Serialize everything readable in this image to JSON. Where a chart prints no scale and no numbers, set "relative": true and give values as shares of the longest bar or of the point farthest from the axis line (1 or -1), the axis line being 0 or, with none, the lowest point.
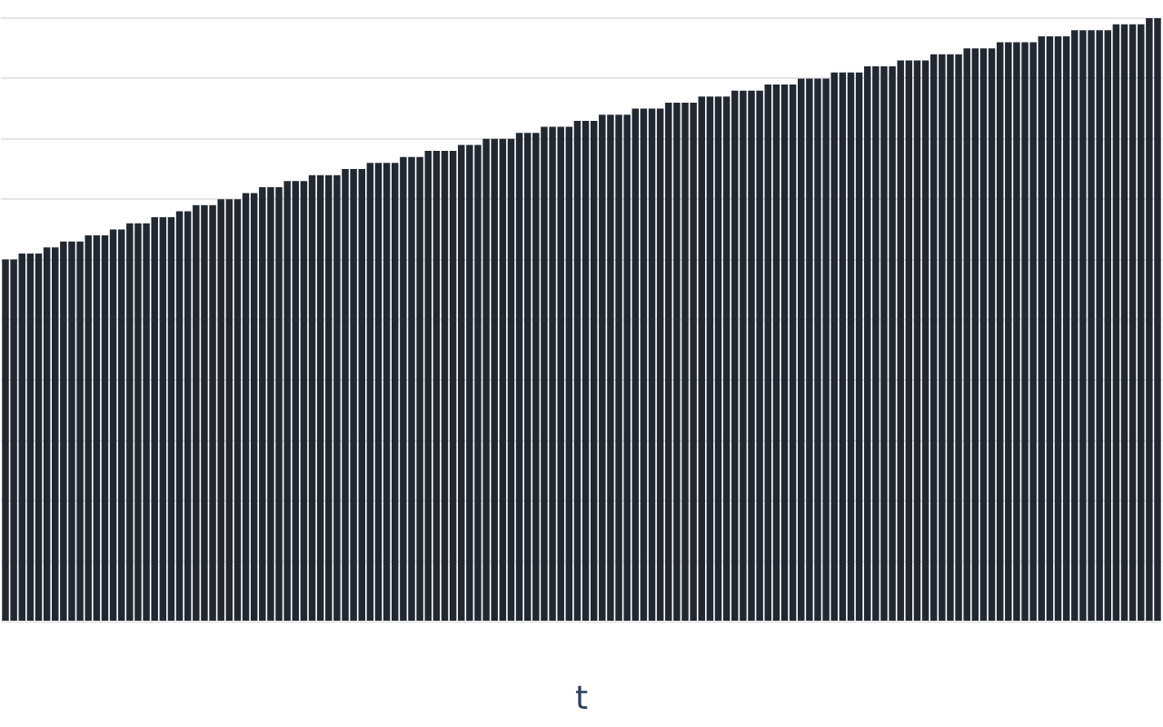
{
  "chart_data": {
    "type": "bar",
    "xlabel": "t",
    "relative": true,
    "grid": "y",
    "color": "#222831",
    "categories": [
      null,
      null,
      null,
      null,
      null,
      null,
      null,
      null,
      null,
      null,
      null,
      null,
      null,
      null,
      null,
      null,
      null,
      null,
      null,
      null,
      null,
      null,
      null,
      null,
      null,
      null,
      null,
      null,
      null,
      null,
      null,
      null,
      null,
      null,
      null,
      null,
      null,
      null,
      null,
      null,
      null,
      null,
      null,
      null,
      null,
      null,
      null,
      null,
      null,
      null,
      null,
      null,
      null,
      null,
      null,
      null,
      null,
      null,
      null,
      null,
      null,
      null,
      null,
      null,
      null,
      null,
      null,
      null,
      null,
      null,
      null,
      null,
      null,
      null,
      null,
      null,
      null,
      null,
      null,
      null,
      null,
      null,
      null,
      null,
      null,
      null,
      null,
      null,
      null,
      null,
      null,
      null,
      null,
      null,
      null,
      null,
      null,
      null,
      null,
      null,
      null,
      null,
      null,
      null,
      null,
      null,
      null,
      null,
      null,
      null,
      null,
      null,
      null,
      null,
      null,
      null,
      null,
      null,
      null,
      null,
      null,
      null,
      null,
      null,
      null,
      null,
      null,
      null,
      null,
      null,
      null,
      null,
      null,
      null,
      null,
      null,
      null,
      null,
      null,
      null
    ],
    "values": [
      0.6,
      0.6,
      0.61,
      0.61,
      0.61,
      0.62,
      0.62,
      0.63,
      0.63,
      0.63,
      0.64,
      0.64,
      0.64,
      0.65,
      0.65,
      0.66,
      0.66,
      0.66,
      0.67,
      0.67,
      0.67,
      0.68,
      0.68,
      0.69,
      0.69,
      0.69,
      0.7,
      0.7,
      0.7,
      0.71,
      0.71,
      0.72,
      0.72,
      0.72,
      0.73,
      0.73,
      0.73,
      0.74,
      0.74,
      0.74,
      0.74,
      0.75,
      0.75,
      0.75,
      0.76,
      0.76,
      0.76,
      0.76,
      0.77,
      0.77,
      0.77,
      0.78,
      0.78,
      0.78,
      0.78,
      0.79,
      0.79,
      0.79,
      0.8,
      0.8,
      0.8,
      0.8,
      0.81,
      0.81,
      0.81,
      0.82,
      0.82,
      0.82,
      0.82,
      0.83,
      0.83,
      0.83,
      0.84,
      0.84,
      0.84,
      0.84,
      0.85,
      0.85,
      0.85,
      0.85,
      0.86,
      0.86,
      0.86,
      0.86,
      0.87,
      0.87,
      0.87,
      0.87,
      0.88,
      0.88,
      0.88,
      0.88,
      0.89,
      0.89,
      0.89,
      0.89,
      0.9,
      0.9,
      0.9,
      0.9,
      0.91,
      0.91,
      0.91,
      0.91,
      0.92,
      0.92,
      0.92,
      0.92,
      0.93,
      0.93,
      0.93,
      0.93,
      0.94,
      0.94,
      0.94,
      0.94,
      0.95,
      0.95,
      0.95,
      0.95,
      0.96,
      0.96,
      0.96,
      0.96,
      0.96,
      0.97,
      0.97,
      0.97,
      0.97,
      0.98,
      0.98,
      0.98,
      0.98,
      0.98,
      0.99,
      0.99,
      0.99,
      0.99,
      1.0,
      1.0
    ]
  }
}
